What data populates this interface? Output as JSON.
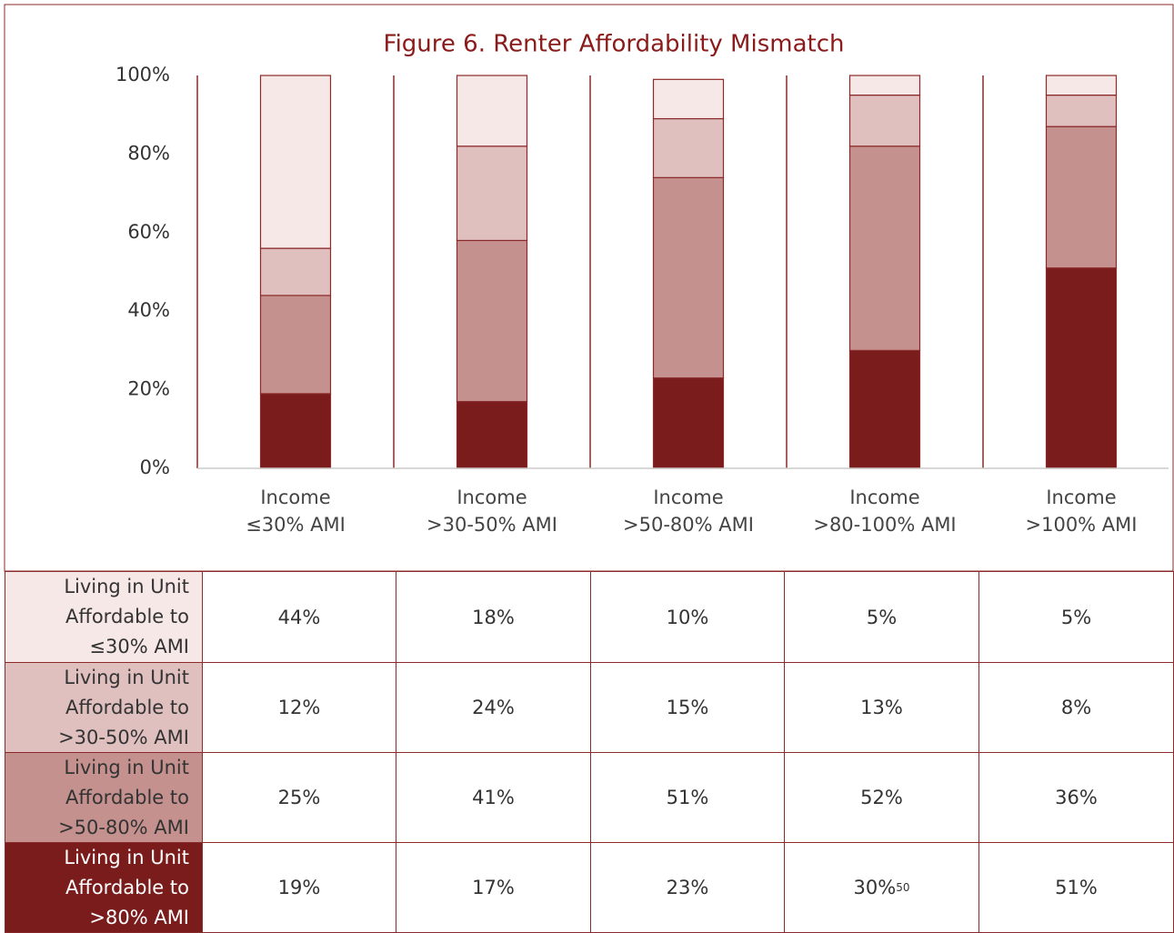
{
  "chart_data": {
    "type": "stacked_bar",
    "title": "Figure 6. Renter Affordability Mismatch",
    "categories": [
      [
        "Income",
        "≤30% AMI"
      ],
      [
        "Income",
        ">30-50% AMI"
      ],
      [
        "Income",
        ">50-80% AMI"
      ],
      [
        "Income",
        ">80-100% AMI"
      ],
      [
        "Income",
        ">100% AMI"
      ]
    ],
    "series": [
      {
        "name": "Living in Unit Affordable to ≤30% AMI",
        "color": "#f6e8e7",
        "values": [
          44,
          18,
          10,
          5,
          5
        ],
        "value_labels": [
          "44%",
          "18%",
          "10%",
          "5%",
          "5%"
        ]
      },
      {
        "name": "Living in Unit Affordable to >30-50% AMI",
        "color": "#dfc0bf",
        "values": [
          12,
          24,
          15,
          13,
          8
        ],
        "value_labels": [
          "12%",
          "24%",
          "15%",
          "13%",
          "8%"
        ]
      },
      {
        "name": "Living in Unit Affordable to >50-80% AMI",
        "color": "#c4918f",
        "values": [
          25,
          41,
          51,
          52,
          36
        ],
        "value_labels": [
          "25%",
          "41%",
          "51%",
          "52%",
          "36%"
        ]
      },
      {
        "name": "Living in Unit Affordable to >80% AMI",
        "color": "#7b1c1c",
        "values": [
          19,
          17,
          23,
          30,
          51
        ],
        "value_labels": [
          "19%",
          "17%",
          "23%",
          "30%",
          "51%"
        ],
        "value_notes": [
          null,
          null,
          null,
          "50",
          null
        ]
      }
    ],
    "ylim": [
      0,
      100
    ],
    "yticks": [
      {
        "value": 0,
        "label": "0%"
      },
      {
        "value": 20,
        "label": "20%"
      },
      {
        "value": 40,
        "label": "40%"
      },
      {
        "value": 60,
        "label": "60%"
      },
      {
        "value": 80,
        "label": "80%"
      },
      {
        "value": 100,
        "label": "100%"
      }
    ]
  }
}
